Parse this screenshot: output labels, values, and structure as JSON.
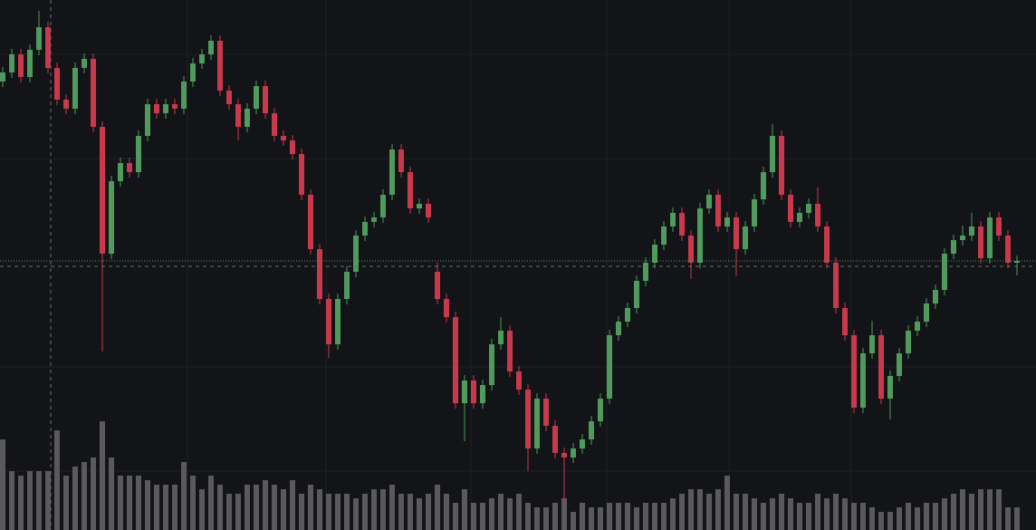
{
  "chart_data": {
    "type": "candlestick",
    "up_color": "#4f9a5c",
    "down_color": "#c8394c",
    "volume_color": "#5a5a5c",
    "ylim": [
      0,
      585
    ],
    "y2lim": [
      0,
      585
    ],
    "open": [
      495,
      505,
      525,
      500,
      530,
      555,
      510,
      475,
      465,
      510,
      520,
      445,
      305,
      385,
      405,
      395,
      435,
      470,
      460,
      470,
      465,
      495,
      515,
      525,
      540,
      485,
      470,
      445,
      465,
      490,
      460,
      435,
      430,
      415,
      370,
      310,
      255,
      205,
      255,
      285,
      325,
      340,
      345,
      370,
      420,
      395,
      355,
      360,
      285,
      255,
      235,
      140,
      165,
      140,
      160,
      205,
      220,
      175,
      155,
      90,
      145,
      115,
      85,
      80,
      90,
      100,
      120,
      145,
      215,
      230,
      245,
      275,
      295,
      315,
      335,
      350,
      325,
      295,
      355,
      370,
      335,
      345,
      310,
      335,
      365,
      395,
      435,
      370,
      340,
      350,
      360,
      335,
      295,
      245,
      215,
      135,
      195,
      215,
      145,
      170,
      195,
      220,
      230,
      250,
      265,
      305,
      320,
      325,
      335,
      300,
      345,
      325,
      295
    ],
    "high": [
      511,
      531,
      531,
      536,
      573,
      561,
      516,
      481,
      516,
      526,
      526,
      451,
      391,
      411,
      411,
      441,
      476,
      476,
      476,
      476,
      501,
      521,
      531,
      546,
      546,
      491,
      476,
      471,
      496,
      496,
      466,
      441,
      436,
      421,
      376,
      316,
      261,
      261,
      291,
      331,
      346,
      351,
      376,
      426,
      426,
      401,
      366,
      366,
      295,
      261,
      241,
      171,
      171,
      166,
      211,
      235,
      226,
      181,
      161,
      151,
      151,
      121,
      91,
      96,
      106,
      126,
      151,
      221,
      236,
      251,
      281,
      301,
      321,
      341,
      356,
      356,
      331,
      361,
      376,
      376,
      351,
      351,
      341,
      371,
      401,
      448,
      441,
      376,
      356,
      366,
      378,
      341,
      301,
      251,
      221,
      201,
      231,
      221,
      176,
      201,
      226,
      236,
      256,
      271,
      311,
      326,
      336,
      350,
      341,
      351,
      351,
      331,
      303
    ],
    "low": [
      489,
      499,
      494,
      494,
      524,
      504,
      469,
      459,
      459,
      504,
      439,
      197,
      299,
      379,
      389,
      389,
      429,
      454,
      454,
      459,
      459,
      489,
      509,
      519,
      479,
      464,
      430,
      439,
      459,
      454,
      429,
      424,
      409,
      364,
      304,
      249,
      190,
      199,
      249,
      279,
      319,
      334,
      339,
      364,
      389,
      349,
      349,
      339,
      249,
      229,
      134,
      98,
      134,
      134,
      154,
      199,
      169,
      149,
      65,
      84,
      109,
      79,
      32,
      74,
      84,
      94,
      114,
      139,
      209,
      224,
      239,
      269,
      289,
      309,
      329,
      319,
      277,
      289,
      349,
      329,
      329,
      280,
      304,
      329,
      359,
      389,
      364,
      334,
      334,
      344,
      329,
      289,
      239,
      209,
      129,
      129,
      189,
      139,
      122,
      164,
      189,
      214,
      224,
      244,
      259,
      299,
      314,
      319,
      294,
      294,
      319,
      289,
      281
    ],
    "close": [
      505,
      525,
      500,
      530,
      555,
      510,
      475,
      465,
      510,
      520,
      445,
      305,
      385,
      405,
      395,
      435,
      470,
      460,
      470,
      465,
      495,
      515,
      525,
      540,
      485,
      470,
      445,
      465,
      490,
      460,
      435,
      430,
      415,
      370,
      310,
      255,
      205,
      255,
      285,
      325,
      340,
      345,
      370,
      420,
      395,
      355,
      360,
      345,
      255,
      235,
      140,
      165,
      140,
      160,
      205,
      220,
      175,
      155,
      90,
      145,
      115,
      85,
      80,
      90,
      100,
      120,
      145,
      215,
      230,
      245,
      275,
      295,
      315,
      335,
      350,
      325,
      295,
      355,
      370,
      335,
      345,
      310,
      335,
      365,
      395,
      435,
      370,
      340,
      350,
      360,
      335,
      295,
      245,
      215,
      135,
      195,
      215,
      145,
      170,
      195,
      220,
      230,
      250,
      265,
      305,
      320,
      325,
      335,
      300,
      345,
      325,
      295,
      297
    ],
    "volume": [
      100,
      65,
      60,
      65,
      65,
      65,
      110,
      60,
      70,
      75,
      80,
      120,
      80,
      60,
      60,
      60,
      55,
      50,
      50,
      50,
      75,
      60,
      45,
      60,
      50,
      40,
      40,
      50,
      50,
      55,
      50,
      45,
      55,
      40,
      50,
      45,
      40,
      40,
      40,
      35,
      40,
      45,
      45,
      50,
      40,
      40,
      35,
      40,
      50,
      40,
      30,
      45,
      30,
      30,
      35,
      40,
      35,
      40,
      30,
      25,
      25,
      30,
      35,
      20,
      30,
      25,
      25,
      30,
      30,
      30,
      25,
      30,
      30,
      30,
      35,
      40,
      45,
      45,
      40,
      45,
      60,
      40,
      40,
      35,
      30,
      35,
      40,
      35,
      30,
      30,
      40,
      35,
      40,
      35,
      30,
      30,
      25,
      20,
      20,
      25,
      30,
      25,
      30,
      30,
      35,
      40,
      45,
      40,
      45,
      45,
      45,
      25,
      25
    ]
  }
}
